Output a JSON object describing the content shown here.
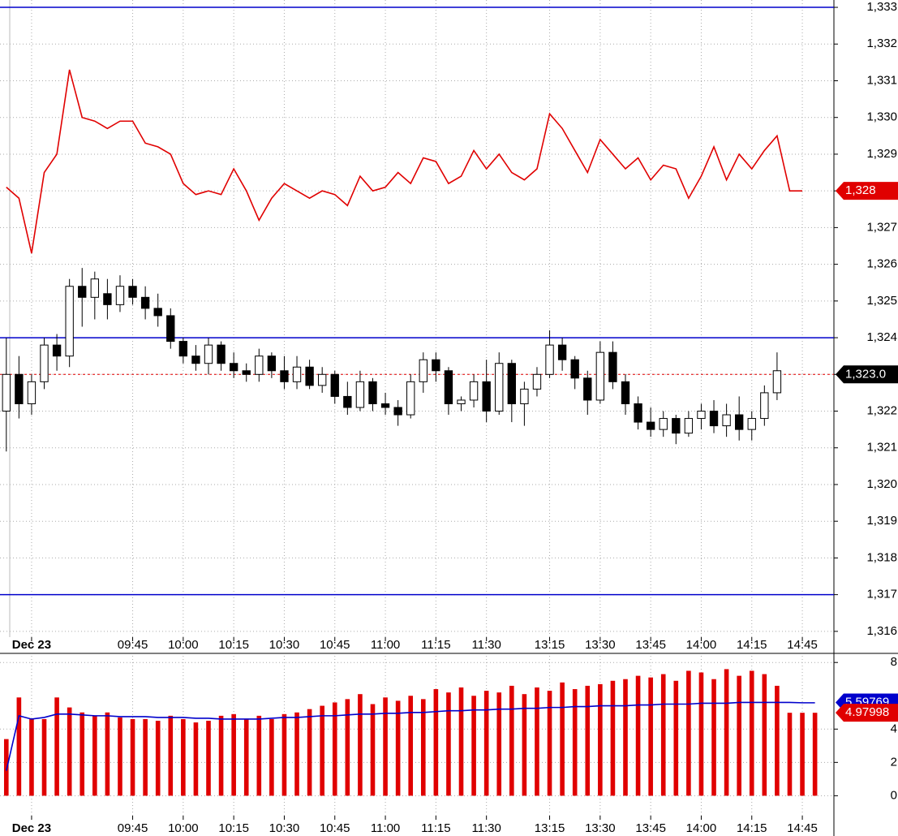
{
  "chart_data": [
    {
      "type": "candlestick",
      "categories": [
        null,
        null,
        "Dec 23",
        null,
        null,
        null,
        null,
        null,
        null,
        null,
        "09:45",
        null,
        null,
        null,
        "10:00",
        null,
        null,
        null,
        "10:15",
        null,
        null,
        null,
        "10:30",
        null,
        null,
        null,
        "10:45",
        null,
        null,
        null,
        "11:00",
        null,
        null,
        null,
        "11:15",
        null,
        null,
        null,
        "11:30",
        null,
        null,
        null,
        null,
        "13:15",
        null,
        null,
        null,
        "13:30",
        null,
        null,
        null,
        "13:45",
        null,
        null,
        null,
        "14:00",
        null,
        null,
        null,
        "14:15",
        null,
        null,
        null,
        "14:45",
        null,
        null
      ],
      "open": [
        1322.0,
        1323.0,
        1322.2,
        1322.8,
        1323.8,
        1323.5,
        1325.4,
        1325.1,
        1325.2,
        1324.9,
        1325.4,
        1325.1,
        1324.8,
        1324.6,
        1323.9,
        1323.5,
        1323.3,
        1323.8,
        1323.3,
        1323.1,
        1323.0,
        1323.5,
        1323.1,
        1322.8,
        1323.2,
        1322.7,
        1323.0,
        1322.4,
        1322.1,
        1322.8,
        1322.2,
        1322.1,
        1321.9,
        1322.8,
        1323.4,
        1323.1,
        1322.2,
        1322.3,
        1322.8,
        1322.0,
        1323.3,
        1322.2,
        1322.6,
        1323.0,
        1323.8,
        1323.4,
        1322.9,
        1322.3,
        1323.6,
        1322.8,
        1322.2,
        1321.7,
        1321.5,
        1321.8,
        1321.4,
        1321.8,
        1322.0,
        1321.6,
        1321.9,
        1321.5,
        1321.8,
        1322.5,
        null,
        null,
        null,
        null
      ],
      "high": [
        1324.0,
        1323.5,
        1323.0,
        1324.0,
        1324.1,
        1325.6,
        1325.9,
        1325.8,
        1325.6,
        1325.7,
        1325.6,
        1325.4,
        1325.2,
        1324.8,
        1324.0,
        1323.8,
        1324.0,
        1323.9,
        1323.6,
        1323.3,
        1323.7,
        1323.6,
        1323.5,
        1323.5,
        1323.4,
        1323.2,
        1323.1,
        1322.8,
        1323.1,
        1322.9,
        1322.5,
        1322.3,
        1323.0,
        1323.6,
        1323.6,
        1323.2,
        1322.4,
        1323.0,
        1323.4,
        1323.6,
        1323.4,
        1322.8,
        1323.2,
        1324.2,
        1324.0,
        1323.5,
        1323.1,
        1323.9,
        1323.9,
        1323.0,
        1322.4,
        1322.1,
        1322.0,
        1321.9,
        1322.0,
        1322.2,
        1322.3,
        1322.2,
        1322.4,
        1322.0,
        1322.7,
        1323.6,
        null,
        null,
        null,
        null
      ],
      "low": [
        1320.9,
        1321.8,
        1321.9,
        1322.6,
        1323.1,
        1323.2,
        1324.3,
        1324.5,
        1324.5,
        1324.7,
        1324.9,
        1324.5,
        1324.3,
        1323.7,
        1323.3,
        1323.1,
        1323.0,
        1323.1,
        1322.9,
        1322.8,
        1322.8,
        1322.9,
        1322.6,
        1322.6,
        1322.6,
        1322.5,
        1322.2,
        1321.9,
        1322.0,
        1322.0,
        1321.9,
        1321.6,
        1321.8,
        1322.5,
        1322.8,
        1321.9,
        1322.0,
        1322.1,
        1321.7,
        1321.9,
        1321.7,
        1321.6,
        1322.4,
        1322.9,
        1323.1,
        1322.6,
        1321.9,
        1322.2,
        1322.6,
        1321.9,
        1321.5,
        1321.3,
        1321.3,
        1321.1,
        1321.3,
        1321.5,
        1321.4,
        1321.3,
        1321.2,
        1321.2,
        1321.6,
        1322.3,
        null,
        null,
        null,
        null
      ],
      "close": [
        1323.0,
        1322.2,
        1322.8,
        1323.8,
        1323.5,
        1325.4,
        1325.1,
        1325.6,
        1324.9,
        1325.4,
        1325.1,
        1324.8,
        1324.6,
        1323.9,
        1323.5,
        1323.3,
        1323.8,
        1323.3,
        1323.1,
        1323.0,
        1323.5,
        1323.1,
        1322.8,
        1323.2,
        1322.7,
        1323.0,
        1322.4,
        1322.1,
        1322.8,
        1322.2,
        1322.1,
        1321.9,
        1322.8,
        1323.4,
        1323.1,
        1322.2,
        1322.3,
        1322.8,
        1322.0,
        1323.3,
        1322.2,
        1322.6,
        1323.0,
        1323.8,
        1323.4,
        1322.9,
        1322.3,
        1323.6,
        1322.8,
        1322.2,
        1321.7,
        1321.5,
        1321.8,
        1321.4,
        1321.8,
        1322.0,
        1321.6,
        1321.9,
        1321.5,
        1321.8,
        1322.5,
        1323.1,
        null,
        null,
        null,
        null
      ],
      "line": {
        "color": "#e00000",
        "values": [
          1328.1,
          1327.8,
          1326.3,
          1328.5,
          1329.0,
          1331.3,
          1330.0,
          1329.9,
          1329.7,
          1329.9,
          1329.9,
          1329.3,
          1329.2,
          1329.0,
          1328.2,
          1327.9,
          1328.0,
          1327.9,
          1328.6,
          1328.0,
          1327.2,
          1327.8,
          1328.2,
          1328.0,
          1327.8,
          1328.0,
          1327.9,
          1327.6,
          1328.4,
          1328.0,
          1328.1,
          1328.5,
          1328.2,
          1328.9,
          1328.8,
          1328.2,
          1328.4,
          1329.1,
          1328.6,
          1329.0,
          1328.5,
          1328.3,
          1328.6,
          1330.1,
          1329.7,
          1329.1,
          1328.5,
          1329.4,
          1329.0,
          1328.6,
          1328.9,
          1328.3,
          1328.7,
          1328.6,
          1327.8,
          1328.4,
          1329.2,
          1328.3,
          1329.0,
          1328.6,
          1329.1,
          1329.5,
          1328.0,
          1328.0,
          null,
          null
        ]
      },
      "ylim": [
        1315.4,
        1333.2
      ],
      "yticks": [
        {
          "value": 1316,
          "label": "1,316"
        },
        {
          "value": 1317,
          "label": "1,317"
        },
        {
          "value": 1318,
          "label": "1,318"
        },
        {
          "value": 1319,
          "label": "1,319"
        },
        {
          "value": 1320,
          "label": "1,320"
        },
        {
          "value": 1321,
          "label": "1,321"
        },
        {
          "value": 1322,
          "label": "1,322"
        },
        {
          "value": 1323,
          "label": "1,323"
        },
        {
          "value": 1324,
          "label": "1,324"
        },
        {
          "value": 1325,
          "label": "1,325"
        },
        {
          "value": 1326,
          "label": "1,326"
        },
        {
          "value": 1327,
          "label": "1,327"
        },
        {
          "value": 1328,
          "label": "1,328"
        },
        {
          "value": 1329,
          "label": "1,329"
        },
        {
          "value": 1330,
          "label": "1,330"
        },
        {
          "value": 1331,
          "label": "1,331"
        },
        {
          "value": 1332,
          "label": "1,332"
        },
        {
          "value": 1333,
          "label": "1,333"
        }
      ],
      "hlines": [
        1333,
        1324,
        1317
      ],
      "ref_line": 1323.0,
      "price_tags": [
        {
          "value": 1328,
          "label": "1,328",
          "color": "#e00000"
        },
        {
          "value": 1323.0,
          "label": "1,323.0",
          "color": "#000000"
        }
      ],
      "grid": true
    },
    {
      "type": "bar",
      "categories": [
        null,
        null,
        "Dec 23",
        null,
        null,
        null,
        null,
        null,
        null,
        null,
        "09:45",
        null,
        null,
        null,
        "10:00",
        null,
        null,
        null,
        "10:15",
        null,
        null,
        null,
        "10:30",
        null,
        null,
        null,
        "10:45",
        null,
        null,
        null,
        "11:00",
        null,
        null,
        null,
        "11:15",
        null,
        null,
        null,
        "11:30",
        null,
        null,
        null,
        null,
        "13:15",
        null,
        null,
        null,
        "13:30",
        null,
        null,
        null,
        "13:45",
        null,
        null,
        null,
        "14:00",
        null,
        null,
        null,
        "14:15",
        null,
        null,
        null,
        "14:45",
        null,
        null
      ],
      "values": [
        3.4,
        5.9,
        4.6,
        4.6,
        5.9,
        5.3,
        5.0,
        4.8,
        5.0,
        4.7,
        4.6,
        4.6,
        4.5,
        4.8,
        4.6,
        4.4,
        4.5,
        4.8,
        4.9,
        4.6,
        4.8,
        4.6,
        4.9,
        5.0,
        5.2,
        5.4,
        5.6,
        5.8,
        6.1,
        5.5,
        5.9,
        5.7,
        6.0,
        5.8,
        6.4,
        6.2,
        6.5,
        6.0,
        6.3,
        6.2,
        6.6,
        6.1,
        6.5,
        6.3,
        6.8,
        6.4,
        6.6,
        6.7,
        6.9,
        7.0,
        7.2,
        7.1,
        7.3,
        6.9,
        7.5,
        7.4,
        7.0,
        7.6,
        7.2,
        7.5,
        7.3,
        6.6,
        4.98,
        4.98,
        4.98,
        null
      ],
      "color": "#e00000",
      "line": {
        "color": "#0000cc",
        "values": [
          1.5,
          4.8,
          4.6,
          4.7,
          4.9,
          4.9,
          4.85,
          4.8,
          4.8,
          4.75,
          4.75,
          4.75,
          4.7,
          4.7,
          4.7,
          4.65,
          4.65,
          4.6,
          4.6,
          4.6,
          4.6,
          4.65,
          4.7,
          4.7,
          4.75,
          4.8,
          4.8,
          4.85,
          4.9,
          4.9,
          4.95,
          4.95,
          5.0,
          5.0,
          5.05,
          5.1,
          5.1,
          5.15,
          5.15,
          5.2,
          5.2,
          5.25,
          5.25,
          5.3,
          5.3,
          5.35,
          5.35,
          5.4,
          5.4,
          5.4,
          5.45,
          5.45,
          5.5,
          5.5,
          5.5,
          5.55,
          5.55,
          5.55,
          5.6,
          5.6,
          5.6,
          5.6,
          5.6,
          5.58,
          5.58,
          null
        ]
      },
      "ylim": [
        -1.2,
        8.4
      ],
      "yticks": [
        0,
        2,
        4,
        8
      ],
      "price_tags": [
        {
          "value": 5.59769,
          "label": "5.59769",
          "color": "#0000cc"
        },
        {
          "value": 4.97998,
          "label": "4.97998",
          "color": "#e00000"
        }
      ],
      "grid": true
    }
  ]
}
